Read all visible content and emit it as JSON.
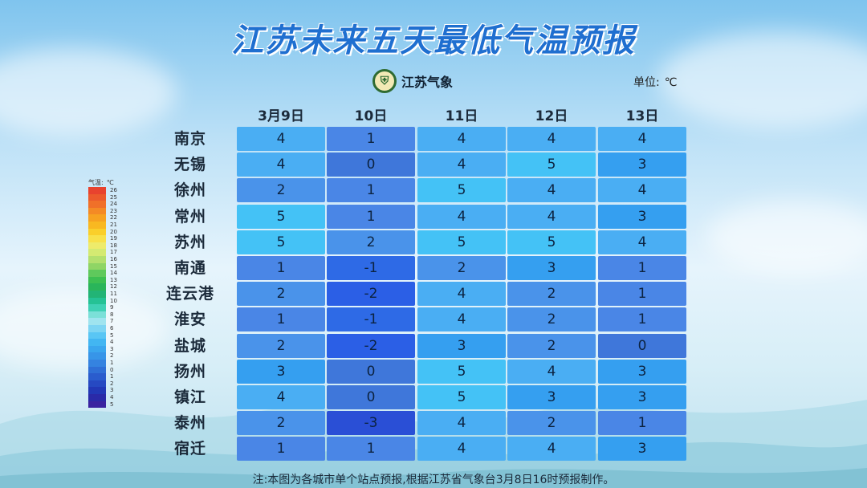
{
  "header": {
    "title": "江苏未来五天最低气温预报",
    "logo_text": "江苏气象",
    "unit_label": "单位:",
    "unit_value": "℃"
  },
  "legend": {
    "title_label": "气温:",
    "title_unit": "℃",
    "ticks": [
      "26",
      "25",
      "24",
      "23",
      "22",
      "21",
      "20",
      "19",
      "18",
      "17",
      "16",
      "15",
      "14",
      "13",
      "12",
      "11",
      "10",
      "9",
      "8",
      "7",
      "6",
      "5",
      "4",
      "3",
      "2",
      "1",
      "0",
      "1",
      "2",
      "3",
      "4",
      "5"
    ],
    "colors": [
      "#e8432e",
      "#ec5a2c",
      "#f07029",
      "#f48a25",
      "#f7a221",
      "#f9b821",
      "#facf2a",
      "#f8e14a",
      "#eeeb6b",
      "#d4ea72",
      "#b3e06e",
      "#8fd565",
      "#5fc95c",
      "#3dbf52",
      "#2ab55a",
      "#22b476",
      "#25c295",
      "#3fd1b5",
      "#7be0d8",
      "#9fe4ef",
      "#7dd5f3",
      "#59c6f4",
      "#42b6f2",
      "#3aa6ee",
      "#3795e8",
      "#3583e0",
      "#2f6fd6",
      "#2a5ccd",
      "#2649c2",
      "#2238b6",
      "#2a2aa8",
      "#3a23a0"
    ]
  },
  "chart_data": {
    "type": "table",
    "title": "江苏未来五天最低气温预报",
    "columns": [
      "3月9日",
      "10日",
      "11日",
      "12日",
      "13日"
    ],
    "rows": [
      {
        "city": "南京",
        "values": [
          4,
          1,
          4,
          4,
          4
        ]
      },
      {
        "city": "无锡",
        "values": [
          4,
          0,
          4,
          5,
          3
        ]
      },
      {
        "city": "徐州",
        "values": [
          2,
          1,
          5,
          4,
          4
        ]
      },
      {
        "city": "常州",
        "values": [
          5,
          1,
          4,
          4,
          3
        ]
      },
      {
        "city": "苏州",
        "values": [
          5,
          2,
          5,
          5,
          4
        ]
      },
      {
        "city": "南通",
        "values": [
          1,
          -1,
          2,
          3,
          1
        ]
      },
      {
        "city": "连云港",
        "values": [
          2,
          -2,
          4,
          2,
          1
        ]
      },
      {
        "city": "淮安",
        "values": [
          1,
          -1,
          4,
          2,
          1
        ]
      },
      {
        "city": "盐城",
        "values": [
          2,
          -2,
          3,
          2,
          0
        ]
      },
      {
        "city": "扬州",
        "values": [
          3,
          0,
          5,
          4,
          3
        ]
      },
      {
        "city": "镇江",
        "values": [
          4,
          0,
          5,
          3,
          3
        ]
      },
      {
        "city": "泰州",
        "values": [
          2,
          -3,
          4,
          2,
          1
        ]
      },
      {
        "city": "宿迁",
        "values": [
          1,
          1,
          4,
          4,
          3
        ]
      }
    ],
    "cell_colors": {
      "5": "#44c2f6",
      "4": "#4aaef3",
      "3": "#359ff0",
      "2": "#4a93ea",
      "1": "#4a86e6",
      "0": "#3f77da",
      "-1": "#2e6ae6",
      "-2": "#2b5fe6",
      "-3": "#2a4fd6"
    }
  },
  "footnote": "注:本图为各城市单个站点预报,根据江苏省气象台3月8日16时预报制作。"
}
